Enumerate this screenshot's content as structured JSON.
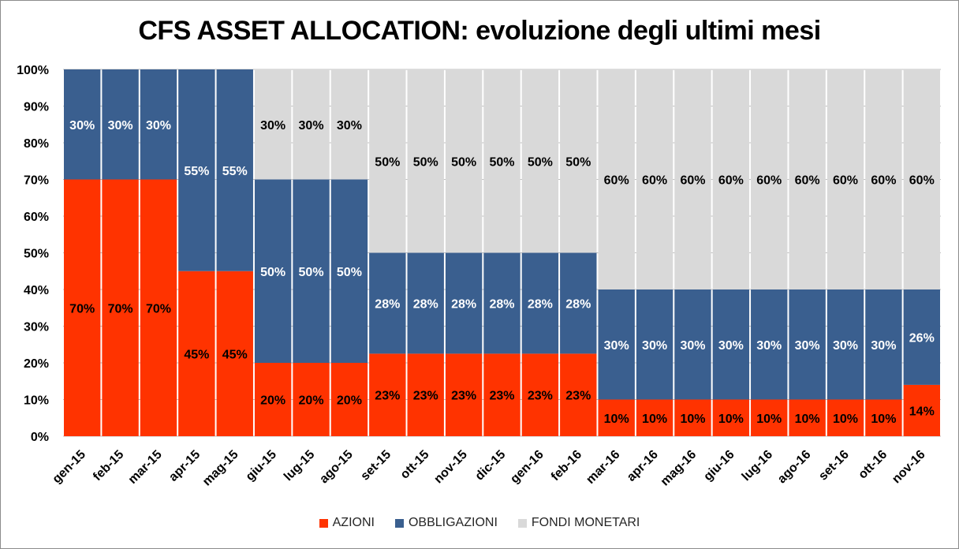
{
  "chart_data": {
    "type": "bar",
    "stacked": true,
    "title": "CFS ASSET ALLOCATION: evoluzione degli ultimi mesi",
    "xlabel": "",
    "ylabel": "",
    "ylim": [
      0,
      100
    ],
    "yticks": [
      "0%",
      "10%",
      "20%",
      "30%",
      "40%",
      "50%",
      "60%",
      "70%",
      "80%",
      "90%",
      "100%"
    ],
    "grid": true,
    "legend_position": "bottom",
    "categories": [
      "gen-15",
      "feb-15",
      "mar-15",
      "apr-15",
      "mag-15",
      "giu-15",
      "lug-15",
      "ago-15",
      "set-15",
      "ott-15",
      "nov-15",
      "dic-15",
      "gen-16",
      "feb-16",
      "mar-16",
      "apr-16",
      "mag-16",
      "giu-16",
      "lug-16",
      "ago-16",
      "set-16",
      "ott-16",
      "nov-16"
    ],
    "series": [
      {
        "name": "AZIONI",
        "color": "#ff3300",
        "label_color": "#000000",
        "values": [
          70,
          70,
          70,
          45,
          45,
          20,
          20,
          20,
          22.5,
          22.5,
          22.5,
          22.5,
          22.5,
          22.5,
          10,
          10,
          10,
          10,
          10,
          10,
          10,
          10,
          14
        ],
        "labels": [
          "70%",
          "70%",
          "70%",
          "45%",
          "45%",
          "20%",
          "20%",
          "20%",
          "23%",
          "23%",
          "23%",
          "23%",
          "23%",
          "23%",
          "10%",
          "10%",
          "10%",
          "10%",
          "10%",
          "10%",
          "10%",
          "10%",
          "14%"
        ]
      },
      {
        "name": "OBBLIGAZIONI",
        "color": "#3a5f8f",
        "label_color": "#ffffff",
        "values": [
          30,
          30,
          30,
          55,
          55,
          50,
          50,
          50,
          27.5,
          27.5,
          27.5,
          27.5,
          27.5,
          27.5,
          30,
          30,
          30,
          30,
          30,
          30,
          30,
          30,
          26
        ],
        "labels": [
          "30%",
          "30%",
          "30%",
          "55%",
          "55%",
          "50%",
          "50%",
          "50%",
          "28%",
          "28%",
          "28%",
          "28%",
          "28%",
          "28%",
          "30%",
          "30%",
          "30%",
          "30%",
          "30%",
          "30%",
          "30%",
          "30%",
          "26%"
        ]
      },
      {
        "name": "FONDI MONETARI",
        "color": "#d9d9d9",
        "label_color": "#000000",
        "values": [
          0,
          0,
          0,
          0,
          0,
          30,
          30,
          30,
          50,
          50,
          50,
          50,
          50,
          50,
          60,
          60,
          60,
          60,
          60,
          60,
          60,
          60,
          60
        ],
        "labels": [
          "",
          "",
          "",
          "",
          "",
          "30%",
          "30%",
          "30%",
          "50%",
          "50%",
          "50%",
          "50%",
          "50%",
          "50%",
          "60%",
          "60%",
          "60%",
          "60%",
          "60%",
          "60%",
          "60%",
          "60%",
          "60%"
        ]
      }
    ]
  }
}
